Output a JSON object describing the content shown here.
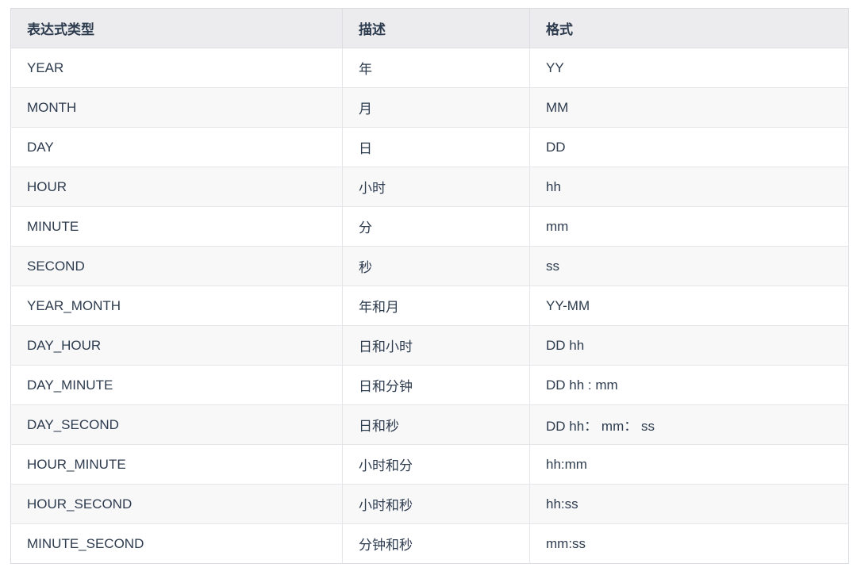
{
  "table": {
    "columns": [
      {
        "label": "表达式类型"
      },
      {
        "label": "描述"
      },
      {
        "label": "格式"
      }
    ],
    "rows": [
      {
        "type": "YEAR",
        "desc": "年",
        "format": "YY"
      },
      {
        "type": "MONTH",
        "desc": "月",
        "format": "MM"
      },
      {
        "type": "DAY",
        "desc": "日",
        "format": "DD"
      },
      {
        "type": "HOUR",
        "desc": "小时",
        "format": "hh"
      },
      {
        "type": "MINUTE",
        "desc": "分",
        "format": "mm"
      },
      {
        "type": "SECOND",
        "desc": "秒",
        "format": "ss"
      },
      {
        "type": "YEAR_MONTH",
        "desc": "年和月",
        "format": "YY-MM"
      },
      {
        "type": "DAY_HOUR",
        "desc": "日和小时",
        "format": "DD hh"
      },
      {
        "type": "DAY_MINUTE",
        "desc": "日和分钟",
        "format": "DD hh : mm"
      },
      {
        "type": "DAY_SECOND",
        "desc": "日和秒",
        "format": "DD hh： mm： ss"
      },
      {
        "type": "HOUR_MINUTE",
        "desc": "小时和分",
        "format": "hh:mm"
      },
      {
        "type": "HOUR_SECOND",
        "desc": "小时和秒",
        "format": "hh:ss"
      },
      {
        "type": "MINUTE_SECOND",
        "desc": "分钟和秒",
        "format": "mm:ss"
      }
    ],
    "colors": {
      "header_bg": "#ececee",
      "alt_row_bg": "#f8f8f9",
      "border": "#d9dce1",
      "text": "#2d3b4e"
    }
  }
}
